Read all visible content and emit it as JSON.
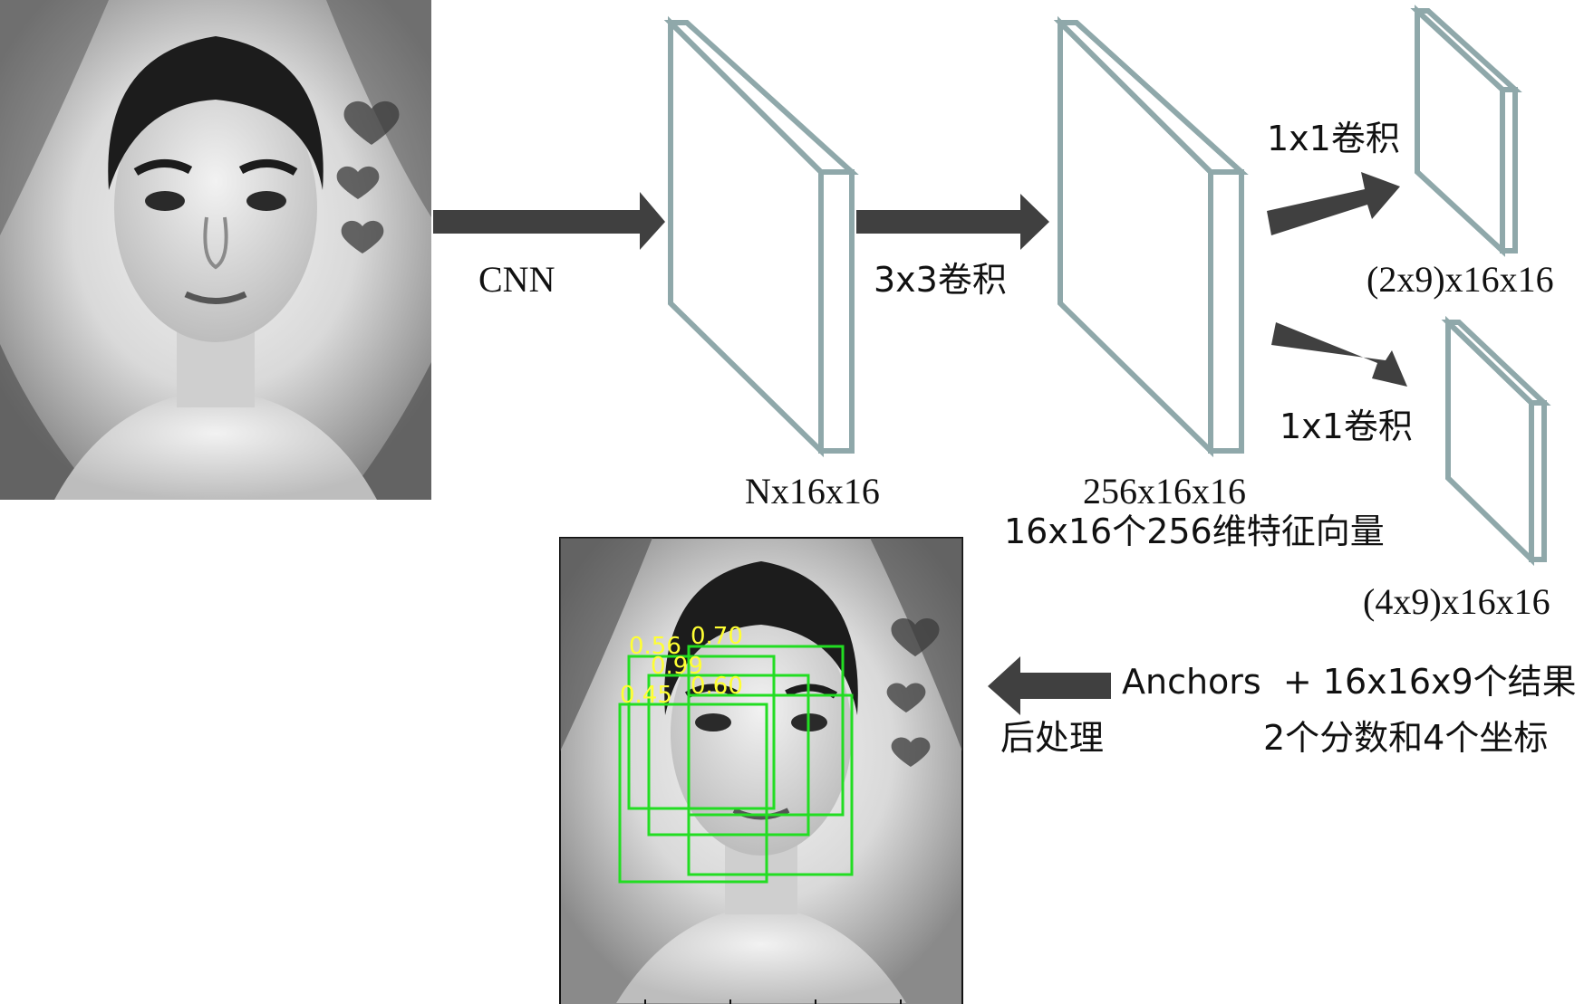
{
  "diagram": {
    "edges": [
      {
        "id": "cnn",
        "label": "CNN"
      },
      {
        "id": "conv3x3",
        "label": "3x3卷积"
      },
      {
        "id": "conv1x1_top",
        "label": "1x1卷积"
      },
      {
        "id": "conv1x1_bottom",
        "label": "1x1卷积"
      },
      {
        "id": "post",
        "label": "后处理"
      }
    ],
    "nodes": {
      "feature_map": {
        "label": "Nx16x16"
      },
      "conv_output": {
        "label": "256x16x16",
        "sublabel": "16x16个256维特征向量"
      },
      "score_output": {
        "label": "(2x9)x16x16"
      },
      "coord_output": {
        "label": "(4x9)x16x16"
      },
      "results": {
        "line1": "Anchors  + 16x16x9个结果",
        "line2": "2个分数和4个坐标"
      }
    },
    "detections": {
      "scores": [
        "0.56",
        "0.70",
        "0.99",
        "0.45",
        "0.60"
      ]
    },
    "colors": {
      "slab_stroke": "#8fa8aa",
      "arrow": "#404040",
      "box": "#22dd22",
      "score_text": "#ffff33"
    }
  }
}
